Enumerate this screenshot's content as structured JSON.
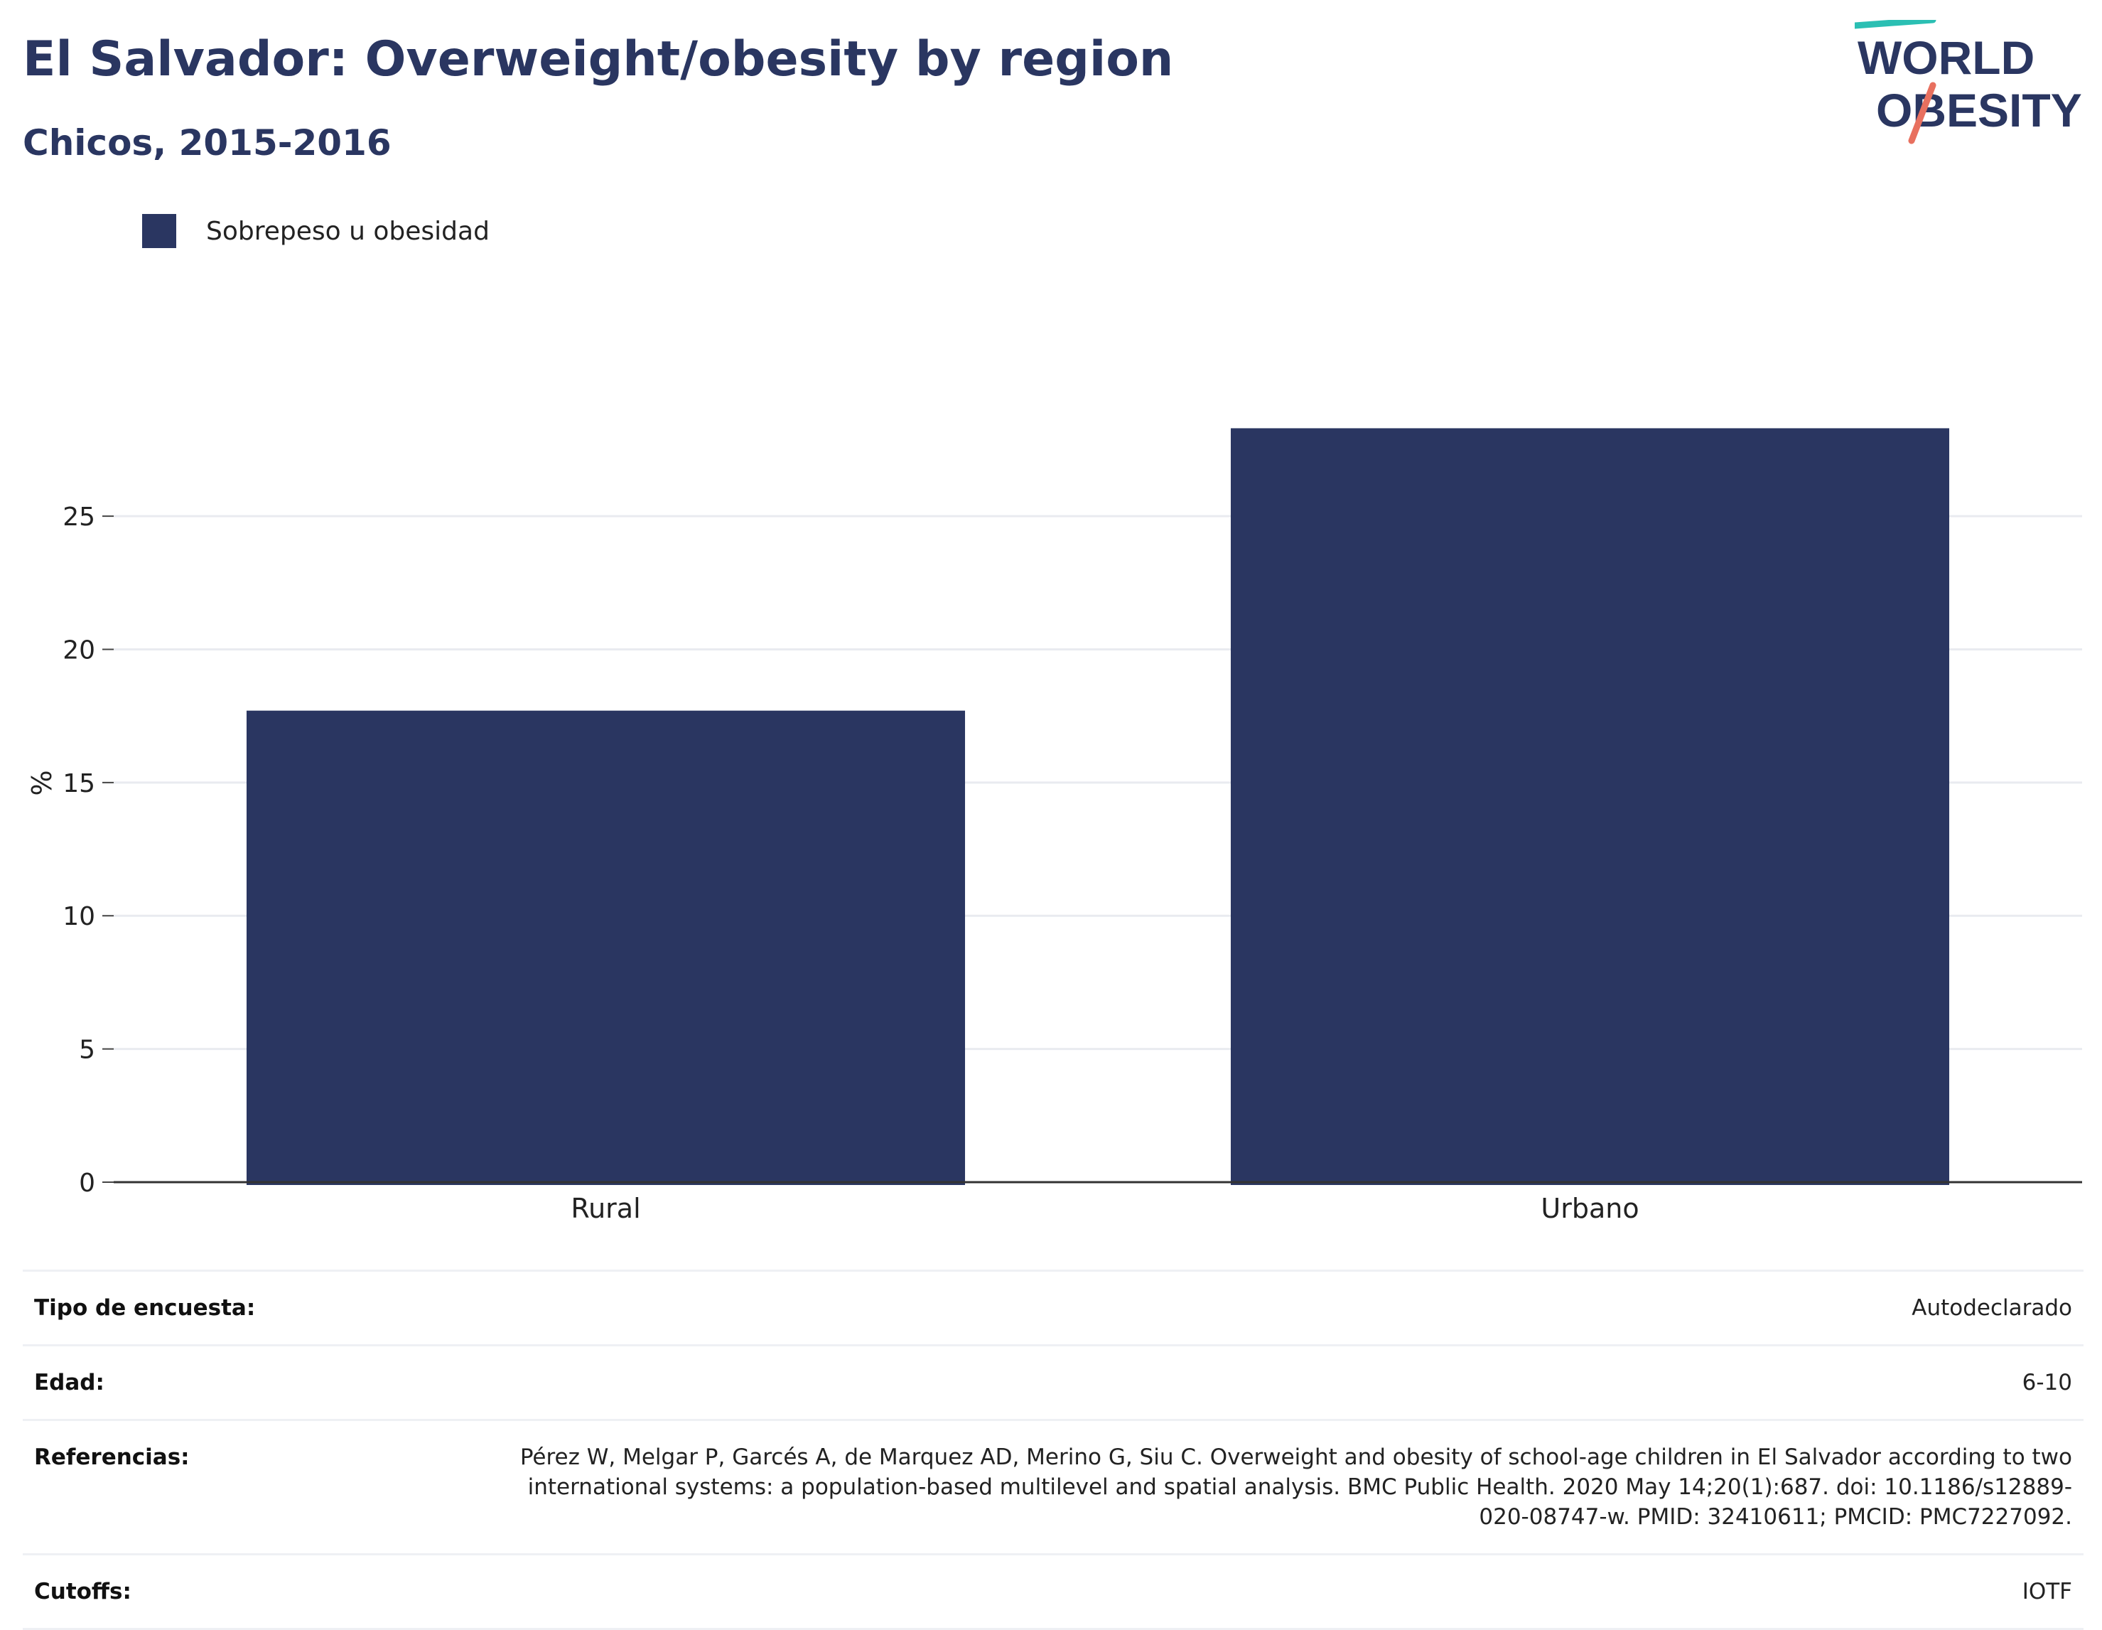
{
  "header": {
    "title": "El Salvador: Overweight/obesity by region",
    "subtitle": "Chicos, 2015-2016"
  },
  "logo": {
    "line1": "WORLD",
    "line2": "OBESITY",
    "colors": {
      "text": "#2a3661",
      "accent_teal": "#2bbfb3",
      "accent_coral": "#e8705f"
    }
  },
  "legend": {
    "label": "Sobrepeso u obesidad"
  },
  "chart_data": {
    "type": "bar",
    "categories": [
      "Rural",
      "Urbano"
    ],
    "series": [
      {
        "name": "Sobrepeso u obesidad",
        "values": [
          17.7,
          28.3
        ],
        "color": "#2a3661"
      }
    ],
    "title": "El Salvador: Overweight/obesity by region",
    "subtitle": "Chicos, 2015-2016",
    "xlabel": "",
    "ylabel": "%",
    "ylim": [
      0,
      30.5
    ],
    "yticks": [
      0,
      5,
      10,
      15,
      20,
      25
    ],
    "grid": true,
    "legend_position": "top-left"
  },
  "info_table": [
    {
      "label": "Tipo de encuesta:",
      "value": "Autodeclarado"
    },
    {
      "label": "Edad:",
      "value": "6-10"
    },
    {
      "label": "Referencias:",
      "value": "Pérez W, Melgar P, Garcés A, de Marquez AD, Merino G, Siu C. Overweight and obesity of school-age children in El Salvador according to two international systems: a population-based multilevel and spatial analysis. BMC Public Health. 2020 May 14;20(1):687. doi: 10.1186/s12889-020-08747-w. PMID: 32410611; PMCID: PMC7227092."
    },
    {
      "label": "Cutoffs:",
      "value": "IOTF"
    }
  ]
}
